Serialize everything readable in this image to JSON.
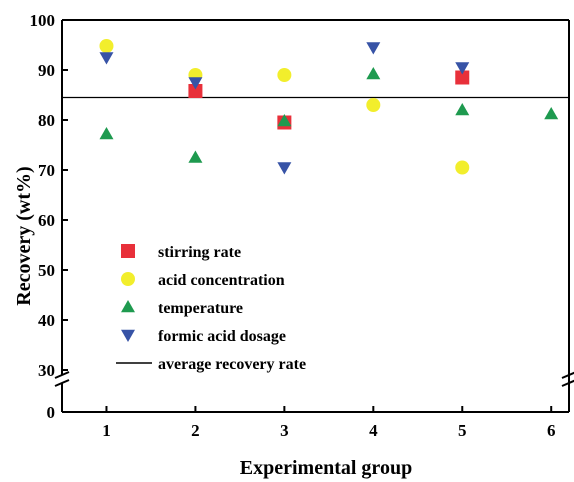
{
  "chart_data": {
    "type": "scatter",
    "xlabel": "Experimental group",
    "ylabel": "Recovery (wt%)",
    "x_ticks": [
      "1",
      "2",
      "3",
      "4",
      "5",
      "6"
    ],
    "y_ticks": [
      "0",
      "30",
      "40",
      "50",
      "60",
      "70",
      "80",
      "90",
      "100"
    ],
    "xlim": [
      0.5,
      6.2
    ],
    "ylim": [
      0,
      100
    ],
    "y_axis_break": [
      0,
      30
    ],
    "grid": false,
    "legend_position": "lower-left",
    "series": [
      {
        "name": "stirring rate",
        "marker": "square",
        "color": "#e8303a",
        "x": [
          2,
          3,
          5
        ],
        "y": [
          85.8,
          79.5,
          88.5
        ]
      },
      {
        "name": "acid concentration",
        "marker": "circle",
        "color": "#f2ee2c",
        "x": [
          1,
          2,
          3,
          4,
          5
        ],
        "y": [
          94.8,
          89.0,
          89.0,
          83.0,
          70.5
        ]
      },
      {
        "name": "temperature",
        "marker": "triangle-up",
        "color": "#1e9a4f",
        "x": [
          1,
          2,
          3,
          4,
          5,
          6
        ],
        "y": [
          77.2,
          72.5,
          79.8,
          89.2,
          82.0,
          81.2
        ]
      },
      {
        "name": "formic acid dosage",
        "marker": "triangle-down",
        "color": "#3753a6",
        "x": [
          1,
          2,
          3,
          4,
          5
        ],
        "y": [
          92.5,
          87.5,
          70.5,
          94.5,
          90.5
        ]
      }
    ],
    "reference_line": {
      "name": "average recovery rate",
      "y": 84.5,
      "color": "#000000"
    }
  }
}
